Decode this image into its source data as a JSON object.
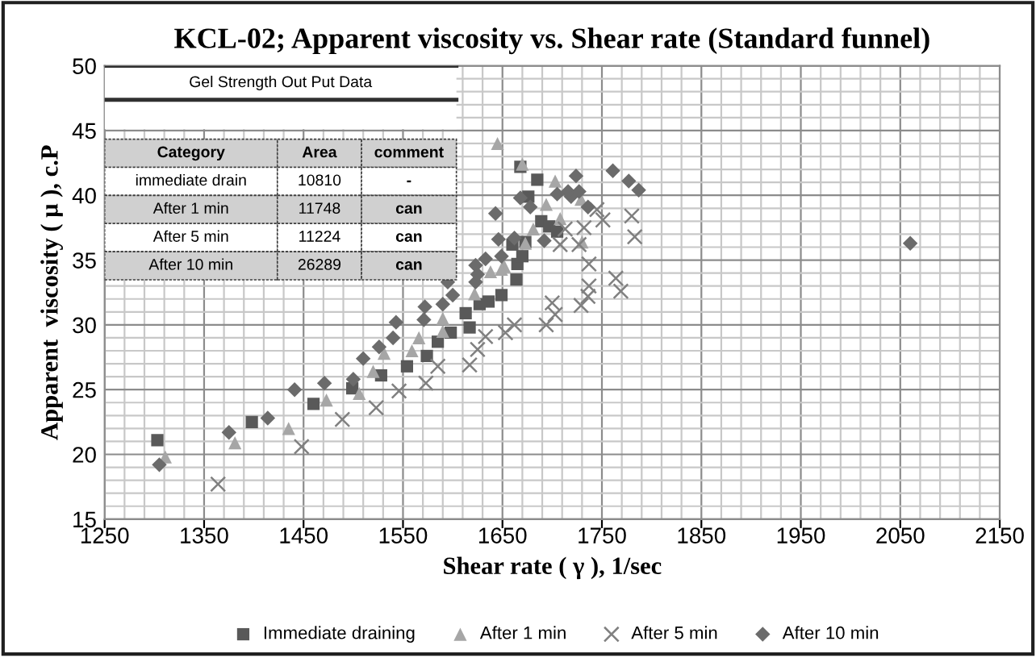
{
  "chart_data": {
    "type": "scatter",
    "title": "KCL-02; Apparent viscosity vs. Shear rate (Standard funnel)",
    "xlabel": "Shear rate ( γ ), 1/sec",
    "ylabel": "Apparent  viscosity ( μ ), c.P",
    "xlim": [
      1250,
      2150
    ],
    "ylim": [
      15,
      50
    ],
    "xticks": [
      1250,
      {
        "value": 1270,
        "label": null
      },
      {
        "value": 1290,
        "label": null
      },
      {
        "value": 1310,
        "label": null
      },
      {
        "value": 1330,
        "label": null
      },
      1350,
      {
        "value": 1370,
        "label": null
      },
      {
        "value": 1390,
        "label": null
      },
      {
        "value": 1410,
        "label": null
      },
      {
        "value": 1430,
        "label": null
      },
      1450,
      {
        "value": 1470,
        "label": null
      },
      {
        "value": 1490,
        "label": null
      },
      {
        "value": 1510,
        "label": null
      },
      {
        "value": 1530,
        "label": null
      },
      1550,
      {
        "value": 1570,
        "label": null
      },
      {
        "value": 1590,
        "label": null
      },
      {
        "value": 1610,
        "label": null
      },
      {
        "value": 1630,
        "label": null
      },
      1650,
      {
        "value": 1670,
        "label": null
      },
      {
        "value": 1690,
        "label": null
      },
      {
        "value": 1710,
        "label": null
      },
      {
        "value": 1730,
        "label": null
      },
      1750,
      {
        "value": 1770,
        "label": null
      },
      {
        "value": 1790,
        "label": null
      },
      {
        "value": 1810,
        "label": null
      },
      {
        "value": 1830,
        "label": null
      },
      1850,
      {
        "value": 1870,
        "label": null
      },
      {
        "value": 1890,
        "label": null
      },
      {
        "value": 1910,
        "label": null
      },
      {
        "value": 1930,
        "label": null
      },
      1950,
      {
        "value": 1970,
        "label": null
      },
      {
        "value": 1990,
        "label": null
      },
      {
        "value": 2010,
        "label": null
      },
      {
        "value": 2030,
        "label": null
      },
      2050,
      {
        "value": 2070,
        "label": null
      },
      {
        "value": 2090,
        "label": null
      },
      {
        "value": 2110,
        "label": null
      },
      {
        "value": 2130,
        "label": null
      },
      2150
    ],
    "yticks": [
      15,
      {
        "value": 16,
        "label": null
      },
      {
        "value": 17,
        "label": null
      },
      {
        "value": 18,
        "label": null
      },
      {
        "value": 19,
        "label": null
      },
      20,
      {
        "value": 21,
        "label": null
      },
      {
        "value": 22,
        "label": null
      },
      {
        "value": 23,
        "label": null
      },
      {
        "value": 24,
        "label": null
      },
      25,
      {
        "value": 26,
        "label": null
      },
      {
        "value": 27,
        "label": null
      },
      {
        "value": 28,
        "label": null
      },
      {
        "value": 29,
        "label": null
      },
      30,
      {
        "value": 31,
        "label": null
      },
      {
        "value": 32,
        "label": null
      },
      {
        "value": 33,
        "label": null
      },
      {
        "value": 34,
        "label": null
      },
      35,
      {
        "value": 36,
        "label": null
      },
      {
        "value": 37,
        "label": null
      },
      {
        "value": 38,
        "label": null
      },
      {
        "value": 39,
        "label": null
      },
      40,
      {
        "value": 41,
        "label": null
      },
      {
        "value": 42,
        "label": null
      },
      {
        "value": 43,
        "label": null
      },
      {
        "value": 44,
        "label": null
      },
      45,
      {
        "value": 46,
        "label": null
      },
      {
        "value": 47,
        "label": null
      },
      {
        "value": 48,
        "label": null
      },
      {
        "value": 49,
        "label": null
      },
      50
    ],
    "grid": true,
    "legend": "bottom",
    "series": [
      {
        "name": "Immediate draining",
        "color": "#595959",
        "marker": "square",
        "x": [
          1303,
          1398,
          1460,
          1499,
          1528,
          1554,
          1574,
          1585,
          1598,
          1613,
          1617,
          1627,
          1649,
          1664,
          1665,
          1636,
          1660,
          1673,
          1670,
          1689,
          1697,
          1705,
          1676,
          1685,
          1668
        ],
        "values": [
          21.1,
          22.5,
          23.9,
          25.1,
          26.1,
          26.8,
          27.6,
          28.7,
          29.4,
          30.9,
          29.8,
          31.6,
          32.3,
          33.5,
          34.7,
          31.8,
          36.2,
          36.4,
          35.3,
          38.0,
          37.6,
          37.2,
          39.9,
          41.2,
          42.2
        ]
      },
      {
        "name": "After 1 min",
        "color": "#a6a6a6",
        "marker": "triangle",
        "x": [
          1311,
          1381,
          1435,
          1473,
          1506,
          1520,
          1531,
          1566,
          1559,
          1590,
          1590,
          1622,
          1638,
          1652,
          1645,
          1670,
          1703,
          1708,
          1729,
          1694,
          1681,
          1673,
          1649,
          1730
        ],
        "values": [
          19.8,
          20.9,
          22.0,
          24.2,
          24.7,
          26.4,
          27.8,
          29.0,
          28.0,
          30.5,
          29.5,
          32.4,
          34.1,
          34.5,
          44.0,
          42.4,
          41.1,
          38.2,
          39.7,
          39.3,
          37.4,
          36.3,
          34.3,
          36.4
        ]
      },
      {
        "name": "After 5 min",
        "color": "#808080",
        "marker": "cross",
        "x": [
          1364,
          1448,
          1489,
          1523,
          1546,
          1573,
          1585,
          1617,
          1625,
          1633,
          1653,
          1662,
          1694,
          1703,
          1700,
          1729,
          1736,
          1737,
          1764,
          1769,
          1737,
          1708,
          1727,
          1732,
          1751,
          1745,
          1780,
          1783,
          1713
        ],
        "values": [
          17.7,
          20.6,
          22.7,
          23.6,
          24.9,
          25.5,
          26.8,
          26.9,
          28.1,
          29.1,
          29.4,
          30.0,
          30.0,
          30.8,
          31.7,
          31.5,
          32.2,
          33.0,
          33.6,
          32.6,
          34.7,
          36.2,
          36.2,
          37.5,
          38.1,
          38.9,
          38.4,
          36.8,
          37.4
        ]
      },
      {
        "name": "After 10 min",
        "color": "#6b6b6b",
        "marker": "diamond",
        "x": [
          1305,
          1375,
          1414,
          1441,
          1471,
          1500,
          1510,
          1526,
          1540,
          1543,
          1571,
          1572,
          1590,
          1595,
          1600,
          1623,
          1623,
          1625,
          1633,
          1649,
          1646,
          1662,
          1692,
          1643,
          1719,
          1716,
          1727,
          1724,
          1736,
          1761,
          1777,
          1787,
          1705,
          1678,
          1668,
          2060
        ],
        "values": [
          19.2,
          21.7,
          22.8,
          25.0,
          25.5,
          25.8,
          27.4,
          28.3,
          29.0,
          30.2,
          30.4,
          31.4,
          31.6,
          33.3,
          32.3,
          33.3,
          34.6,
          33.9,
          35.1,
          35.3,
          36.6,
          36.7,
          36.5,
          38.6,
          39.9,
          40.3,
          40.3,
          41.5,
          39.1,
          41.9,
          41.1,
          40.4,
          40.1,
          39.1,
          39.8,
          36.3
        ]
      }
    ],
    "annotations": [
      "Gel Strength Out Put Data",
      "Category",
      "Area",
      "comment",
      "immediate drain",
      "10810",
      "-",
      "After 1 min",
      "11748",
      "can",
      "After 5 min",
      "11224",
      "can",
      "After 10 min",
      "26289",
      "can"
    ]
  }
}
